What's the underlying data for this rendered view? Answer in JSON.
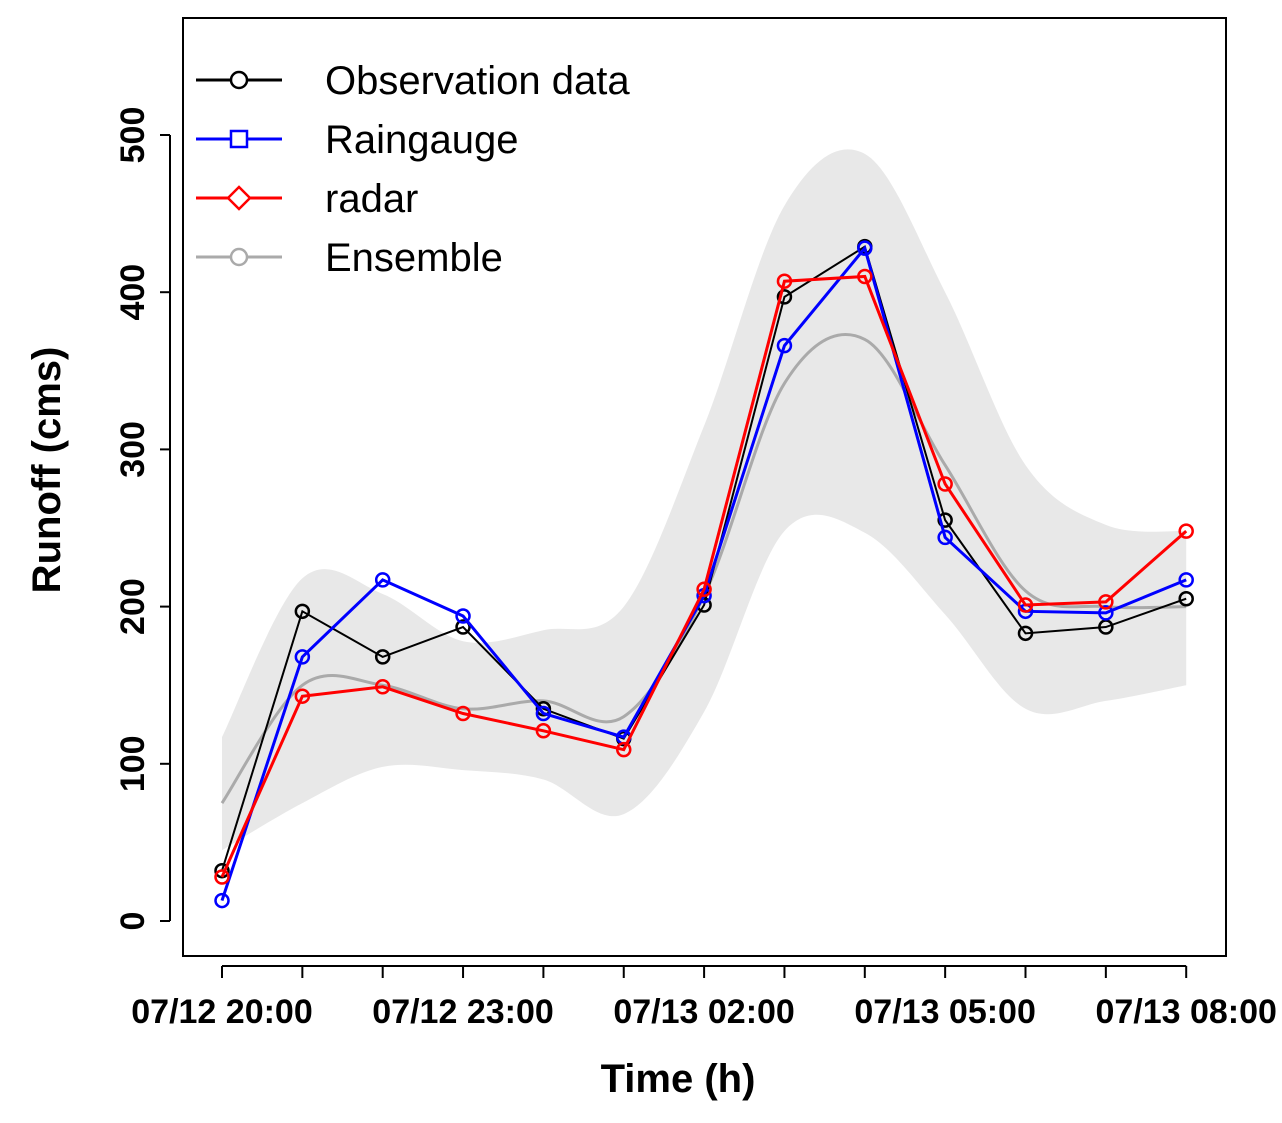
{
  "chart_data": {
    "type": "line",
    "xlabel": "Time (h)",
    "ylabel": "Runoff (cms)",
    "ylim": [
      -20,
      565
    ],
    "y_ticks": [
      0,
      100,
      200,
      300,
      400,
      500
    ],
    "x_tick_labels": [
      "07/12 20:00",
      "07/12 23:00",
      "07/13 02:00",
      "07/13 05:00",
      "07/13 08:00"
    ],
    "x_tick_label_positions": [
      0,
      3,
      6,
      9,
      12
    ],
    "x_hours": [
      0,
      1,
      2,
      3,
      4,
      5,
      6,
      7,
      8,
      9,
      10,
      11,
      12
    ],
    "band": {
      "name": "Ensemble range",
      "color": "#e8e8e8",
      "upper": [
        117,
        218,
        208,
        178,
        185,
        200,
        315,
        455,
        488,
        400,
        290,
        252,
        248
      ],
      "lower": [
        45,
        75,
        98,
        96,
        90,
        68,
        133,
        248,
        247,
        195,
        135,
        140,
        150
      ]
    },
    "series": [
      {
        "name": "Observation data",
        "color": "#000000",
        "marker": "circle",
        "values": [
          32,
          197,
          168,
          187,
          135,
          116,
          201,
          397,
          429,
          255,
          183,
          187,
          205
        ]
      },
      {
        "name": "Raingauge",
        "color": "#0000ff",
        "marker": "square",
        "values": [
          13,
          168,
          217,
          194,
          132,
          117,
          207,
          366,
          428,
          244,
          197,
          196,
          217
        ]
      },
      {
        "name": "radar",
        "color": "#ff0000",
        "marker": "diamond",
        "values": [
          28,
          143,
          149,
          132,
          121,
          109,
          211,
          407,
          410,
          278,
          201,
          203,
          248
        ]
      },
      {
        "name": "Ensemble",
        "color": "#aaaaaa",
        "marker": "circle",
        "values": [
          75,
          150,
          150,
          135,
          140,
          130,
          207,
          342,
          370,
          290,
          210,
          200,
          200
        ]
      }
    ],
    "legend": {
      "position": "top-left"
    }
  }
}
